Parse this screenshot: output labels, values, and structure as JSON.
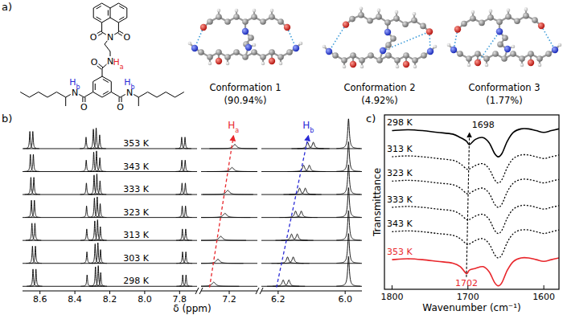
{
  "panel_labels": [
    "a)",
    "b)",
    "c)"
  ],
  "structure": {
    "atoms": [
      {
        "label": "O"
      },
      {
        "label": "O"
      },
      {
        "label": "N"
      },
      {
        "label": "N"
      },
      {
        "label": "H",
        "subscript": "a",
        "color": "#e8262b"
      },
      {
        "label": "O"
      },
      {
        "label": "N"
      },
      {
        "label": "H",
        "subscript": "b",
        "color": "#2b2bd6"
      },
      {
        "label": "O"
      },
      {
        "label": "N"
      },
      {
        "label": "H",
        "subscript": "b",
        "color": "#2b2bd6"
      },
      {
        "label": "O"
      }
    ]
  },
  "conformations": [
    {
      "name": "Conformation 1",
      "label": "(90.94%)"
    },
    {
      "name": "Conformation 2",
      "label": "(4.92%)"
    },
    {
      "name": "Conformation 3",
      "label": "(1.77%)"
    }
  ],
  "chart_data": [
    {
      "type": "spectrum",
      "x_label": "δ (ppm)",
      "color": "#000000",
      "tick_labels": "x",
      "ylim": [
        -0.2,
        7.4
      ],
      "segments": [
        {
          "xlim": [
            8.7,
            7.7
          ],
          "xticks": [
            8.6,
            8.4,
            8.2,
            {
              "value": 8,
              "label": "8.0"
            },
            7.8
          ]
        },
        {
          "xlim": [
            7.4,
            7.0
          ],
          "xticks": [
            7.2
          ]
        },
        {
          "xlim": [
            6.25,
            5.95
          ],
          "xticks": [
            6.2,
            {
              "value": 6,
              "label": "6.0"
            }
          ]
        }
      ],
      "series": [
        {
          "name": "298 K",
          "baseline": 0,
          "peaks": [
            {
              "x": 8.64,
              "h": 0.75,
              "w": 0.003
            },
            {
              "x": 8.623,
              "h": 0.75,
              "w": 0.003
            },
            {
              "x": 8.33,
              "h": 0.5,
              "w": 0.003
            },
            {
              "x": 8.282,
              "h": 0.85,
              "w": 0.003
            },
            {
              "x": 8.266,
              "h": 0.9,
              "w": 0.003
            },
            {
              "x": 8.252,
              "h": 0.6,
              "w": 0.003
            },
            {
              "x": 7.782,
              "h": 0.5,
              "w": 0.003
            },
            {
              "x": 7.763,
              "h": 0.5,
              "w": 0.003
            },
            {
              "x": 7.31,
              "h": 0.18,
              "w": 0.015
            },
            {
              "x": 6.185,
              "h": 0.28,
              "w": 0.004
            },
            {
              "x": 6.168,
              "h": 0.28,
              "w": 0.004
            },
            {
              "x": 5.99,
              "h": 1.3,
              "w": 0.003
            }
          ]
        },
        {
          "name": "303 K",
          "baseline": 1,
          "peaks": [
            {
              "x": 8.643,
              "h": 0.75,
              "w": 0.003
            },
            {
              "x": 8.626,
              "h": 0.75,
              "w": 0.003
            },
            {
              "x": 8.331,
              "h": 0.5,
              "w": 0.003
            },
            {
              "x": 8.284,
              "h": 0.85,
              "w": 0.003
            },
            {
              "x": 8.268,
              "h": 0.9,
              "w": 0.003
            },
            {
              "x": 8.253,
              "h": 0.6,
              "w": 0.003
            },
            {
              "x": 7.783,
              "h": 0.5,
              "w": 0.003
            },
            {
              "x": 7.764,
              "h": 0.5,
              "w": 0.003
            },
            {
              "x": 7.28,
              "h": 0.18,
              "w": 0.015
            },
            {
              "x": 6.172,
              "h": 0.28,
              "w": 0.004
            },
            {
              "x": 6.155,
              "h": 0.28,
              "w": 0.004
            },
            {
              "x": 5.99,
              "h": 1.3,
              "w": 0.003
            }
          ]
        },
        {
          "name": "313 K",
          "baseline": 2,
          "peaks": [
            {
              "x": 8.646,
              "h": 0.75,
              "w": 0.003
            },
            {
              "x": 8.629,
              "h": 0.75,
              "w": 0.003
            },
            {
              "x": 8.332,
              "h": 0.5,
              "w": 0.003
            },
            {
              "x": 8.286,
              "h": 0.85,
              "w": 0.003
            },
            {
              "x": 8.27,
              "h": 0.9,
              "w": 0.003
            },
            {
              "x": 8.254,
              "h": 0.6,
              "w": 0.003
            },
            {
              "x": 7.784,
              "h": 0.5,
              "w": 0.003
            },
            {
              "x": 7.765,
              "h": 0.5,
              "w": 0.003
            },
            {
              "x": 7.26,
              "h": 0.18,
              "w": 0.015
            },
            {
              "x": 6.16,
              "h": 0.28,
              "w": 0.004
            },
            {
              "x": 6.143,
              "h": 0.28,
              "w": 0.004
            },
            {
              "x": 5.99,
              "h": 1.3,
              "w": 0.003
            }
          ]
        },
        {
          "name": "323 K",
          "baseline": 3,
          "peaks": [
            {
              "x": 8.649,
              "h": 0.75,
              "w": 0.003
            },
            {
              "x": 8.632,
              "h": 0.75,
              "w": 0.003
            },
            {
              "x": 8.333,
              "h": 0.5,
              "w": 0.003
            },
            {
              "x": 8.288,
              "h": 0.85,
              "w": 0.003
            },
            {
              "x": 8.272,
              "h": 0.9,
              "w": 0.003
            },
            {
              "x": 8.255,
              "h": 0.6,
              "w": 0.003
            },
            {
              "x": 7.785,
              "h": 0.5,
              "w": 0.003
            },
            {
              "x": 7.766,
              "h": 0.5,
              "w": 0.003
            },
            {
              "x": 7.23,
              "h": 0.18,
              "w": 0.015
            },
            {
              "x": 6.148,
              "h": 0.28,
              "w": 0.004
            },
            {
              "x": 6.131,
              "h": 0.28,
              "w": 0.004
            },
            {
              "x": 5.99,
              "h": 1.3,
              "w": 0.003
            }
          ]
        },
        {
          "name": "333 K",
          "baseline": 4,
          "peaks": [
            {
              "x": 8.652,
              "h": 0.75,
              "w": 0.003
            },
            {
              "x": 8.635,
              "h": 0.75,
              "w": 0.003
            },
            {
              "x": 8.334,
              "h": 0.5,
              "w": 0.003
            },
            {
              "x": 8.29,
              "h": 0.85,
              "w": 0.003
            },
            {
              "x": 8.274,
              "h": 0.9,
              "w": 0.003
            },
            {
              "x": 8.256,
              "h": 0.6,
              "w": 0.003
            },
            {
              "x": 7.786,
              "h": 0.5,
              "w": 0.003
            },
            {
              "x": 7.767,
              "h": 0.5,
              "w": 0.003
            },
            {
              "x": 7.21,
              "h": 0.18,
              "w": 0.015
            },
            {
              "x": 6.136,
              "h": 0.28,
              "w": 0.004
            },
            {
              "x": 6.119,
              "h": 0.28,
              "w": 0.004
            },
            {
              "x": 5.99,
              "h": 1.3,
              "w": 0.003
            }
          ]
        },
        {
          "name": "343 K",
          "baseline": 5,
          "peaks": [
            {
              "x": 8.655,
              "h": 0.75,
              "w": 0.003
            },
            {
              "x": 8.638,
              "h": 0.75,
              "w": 0.003
            },
            {
              "x": 8.335,
              "h": 0.5,
              "w": 0.003
            },
            {
              "x": 8.292,
              "h": 0.85,
              "w": 0.003
            },
            {
              "x": 8.276,
              "h": 0.9,
              "w": 0.003
            },
            {
              "x": 8.257,
              "h": 0.6,
              "w": 0.003
            },
            {
              "x": 7.787,
              "h": 0.5,
              "w": 0.003
            },
            {
              "x": 7.768,
              "h": 0.5,
              "w": 0.003
            },
            {
              "x": 7.18,
              "h": 0.18,
              "w": 0.015
            },
            {
              "x": 6.124,
              "h": 0.28,
              "w": 0.004
            },
            {
              "x": 6.107,
              "h": 0.28,
              "w": 0.004
            },
            {
              "x": 5.99,
              "h": 1.3,
              "w": 0.003
            }
          ]
        },
        {
          "name": "353 K",
          "baseline": 6,
          "peaks": [
            {
              "x": 8.658,
              "h": 0.75,
              "w": 0.003
            },
            {
              "x": 8.641,
              "h": 0.75,
              "w": 0.003
            },
            {
              "x": 8.336,
              "h": 0.5,
              "w": 0.003
            },
            {
              "x": 8.294,
              "h": 0.85,
              "w": 0.003
            },
            {
              "x": 8.278,
              "h": 0.9,
              "w": 0.003
            },
            {
              "x": 8.258,
              "h": 0.6,
              "w": 0.003
            },
            {
              "x": 7.788,
              "h": 0.5,
              "w": 0.003
            },
            {
              "x": 7.769,
              "h": 0.5,
              "w": 0.003
            },
            {
              "x": 7.16,
              "h": 0.18,
              "w": 0.015
            },
            {
              "x": 6.112,
              "h": 0.28,
              "w": 0.004
            },
            {
              "x": 6.095,
              "h": 0.28,
              "w": 0.004
            },
            {
              "x": 5.99,
              "h": 1.3,
              "w": 0.003
            }
          ]
        }
      ],
      "annotations": [
        {
          "text": "H",
          "subscript": "a",
          "color": "#e8262b",
          "x": [
            7.34,
            7.17
          ],
          "y": [
            -0.05,
            6.55
          ]
        },
        {
          "text": "H",
          "subscript": "b",
          "color": "#2b2bd6",
          "x": [
            6.205,
            6.11
          ],
          "y": [
            -0.05,
            6.55
          ]
        }
      ]
    },
    {
      "type": "line",
      "x_label": "Wavenumber (cm⁻¹)",
      "y_label": "Transmittance",
      "tick_labels": "x",
      "xlim": [
        1810,
        1580
      ],
      "xticks": [
        1800,
        1700,
        1600
      ],
      "ylim": [
        0,
        100
      ],
      "x": [
        1800,
        1780,
        1760,
        1740,
        1720,
        1710,
        1702,
        1698,
        1690,
        1680,
        1672,
        1665,
        1660,
        1655,
        1648,
        1640,
        1630,
        1620,
        1610,
        1600,
        1590,
        1580
      ],
      "series": [
        {
          "name": "298 K",
          "color": "#000000",
          "line_style": "solid",
          "values": [
            91,
            91.5,
            91,
            90,
            89,
            87,
            85,
            83,
            86,
            87,
            84,
            78,
            76,
            78,
            85,
            90,
            92,
            92,
            91,
            90,
            91,
            92
          ]
        },
        {
          "name": "313 K",
          "color": "#000000",
          "line_style": "dotted",
          "values": [
            76,
            76.5,
            76,
            75,
            74,
            72,
            69,
            69,
            71,
            72,
            69,
            63,
            61,
            63,
            70,
            75,
            77,
            77,
            76,
            75,
            76,
            77
          ]
        },
        {
          "name": "323 K",
          "color": "#000000",
          "line_style": "dotted",
          "values": [
            62,
            62.5,
            62,
            61,
            60,
            58,
            55,
            55,
            57,
            58,
            55,
            49,
            47,
            49,
            56,
            61,
            63,
            63,
            62,
            61,
            62,
            63
          ]
        },
        {
          "name": "333 K",
          "color": "#000000",
          "line_style": "dotted",
          "values": [
            47,
            47.5,
            47,
            46,
            45,
            43,
            40,
            40,
            42,
            43,
            40,
            34,
            32,
            34,
            41,
            46,
            48,
            48,
            47,
            46,
            47,
            48
          ]
        },
        {
          "name": "343 K",
          "color": "#000000",
          "line_style": "dotted",
          "values": [
            33,
            33.5,
            33,
            32,
            31,
            29,
            26,
            26,
            28,
            29,
            26,
            20,
            18,
            20,
            27,
            32,
            34,
            34,
            33,
            32,
            33,
            34
          ]
        },
        {
          "name": "353 K",
          "color": "#e8262b",
          "line_style": "solid",
          "values": [
            17,
            17.5,
            17,
            16,
            15,
            13,
            9,
            11,
            12,
            13,
            10,
            4,
            2,
            4,
            11,
            16,
            18,
            18,
            17,
            16,
            17,
            18
          ]
        }
      ],
      "annotations": [
        {
          "text": "1698",
          "x": 1698,
          "y": 92.5,
          "color": "#000000"
        },
        {
          "text": "1702",
          "x": 1702,
          "y": 2,
          "color": "#e8262b"
        }
      ]
    }
  ]
}
